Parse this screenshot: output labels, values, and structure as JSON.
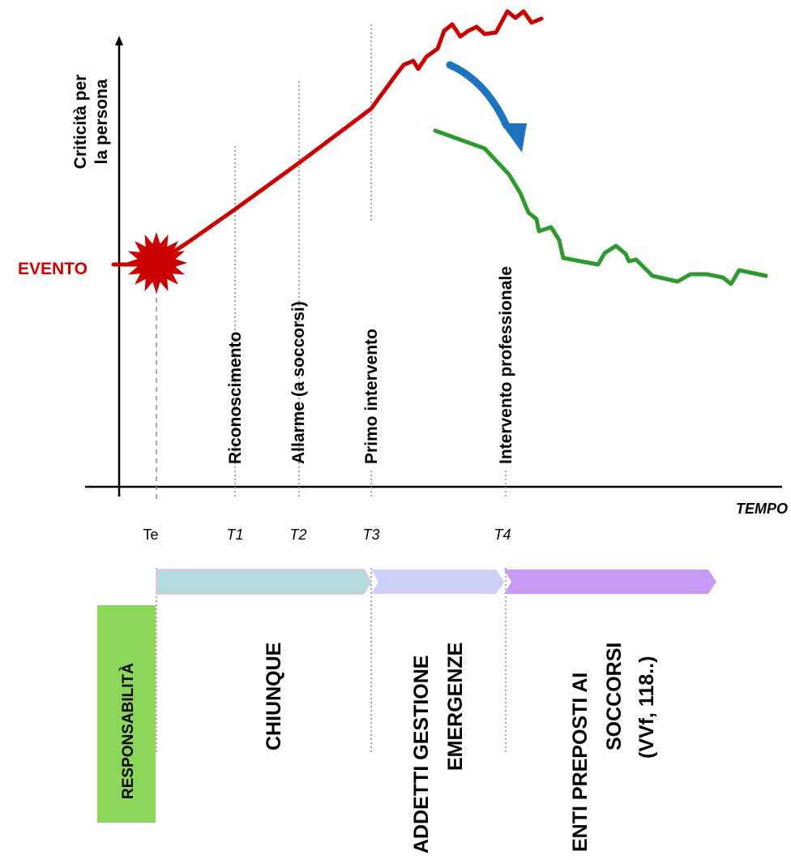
{
  "diagram": {
    "y_axis_label_line1": "Criticità per",
    "y_axis_label_line2": "la persona",
    "x_axis_label": "TEMPO",
    "event_label": "EVENTO",
    "milestones": [
      {
        "tick": "Te",
        "label": ""
      },
      {
        "tick": "T1",
        "label": "Riconoscimento"
      },
      {
        "tick": "T2",
        "label": "Allarme (a soccorsi)"
      },
      {
        "tick": "T3",
        "label": "Primo intervento"
      },
      {
        "tick": "T4",
        "label": "Intervento professionale"
      }
    ],
    "responsibility_label": "RESPONSABILITÀ",
    "phases": [
      {
        "line1": "CHIUNQUE",
        "line2": "",
        "line3": "",
        "color": "#b4dcdc"
      },
      {
        "line1": "ADDETTI GESTIONE",
        "line2": "EMERGENZE",
        "line3": "",
        "color": "#cdd0f8"
      },
      {
        "line1": "ENTI PREPOSTI AI",
        "line2": "SOCCORSI",
        "line3": "(VVf, 118..)",
        "color": "#c79af5"
      }
    ],
    "colors": {
      "escalation_line": "#cc0000",
      "recovery_line": "#2e9a2e",
      "arrow": "#1e73be",
      "responsibility_box": "#8cd65a",
      "axis": "#000000",
      "guide": "#888888"
    }
  }
}
